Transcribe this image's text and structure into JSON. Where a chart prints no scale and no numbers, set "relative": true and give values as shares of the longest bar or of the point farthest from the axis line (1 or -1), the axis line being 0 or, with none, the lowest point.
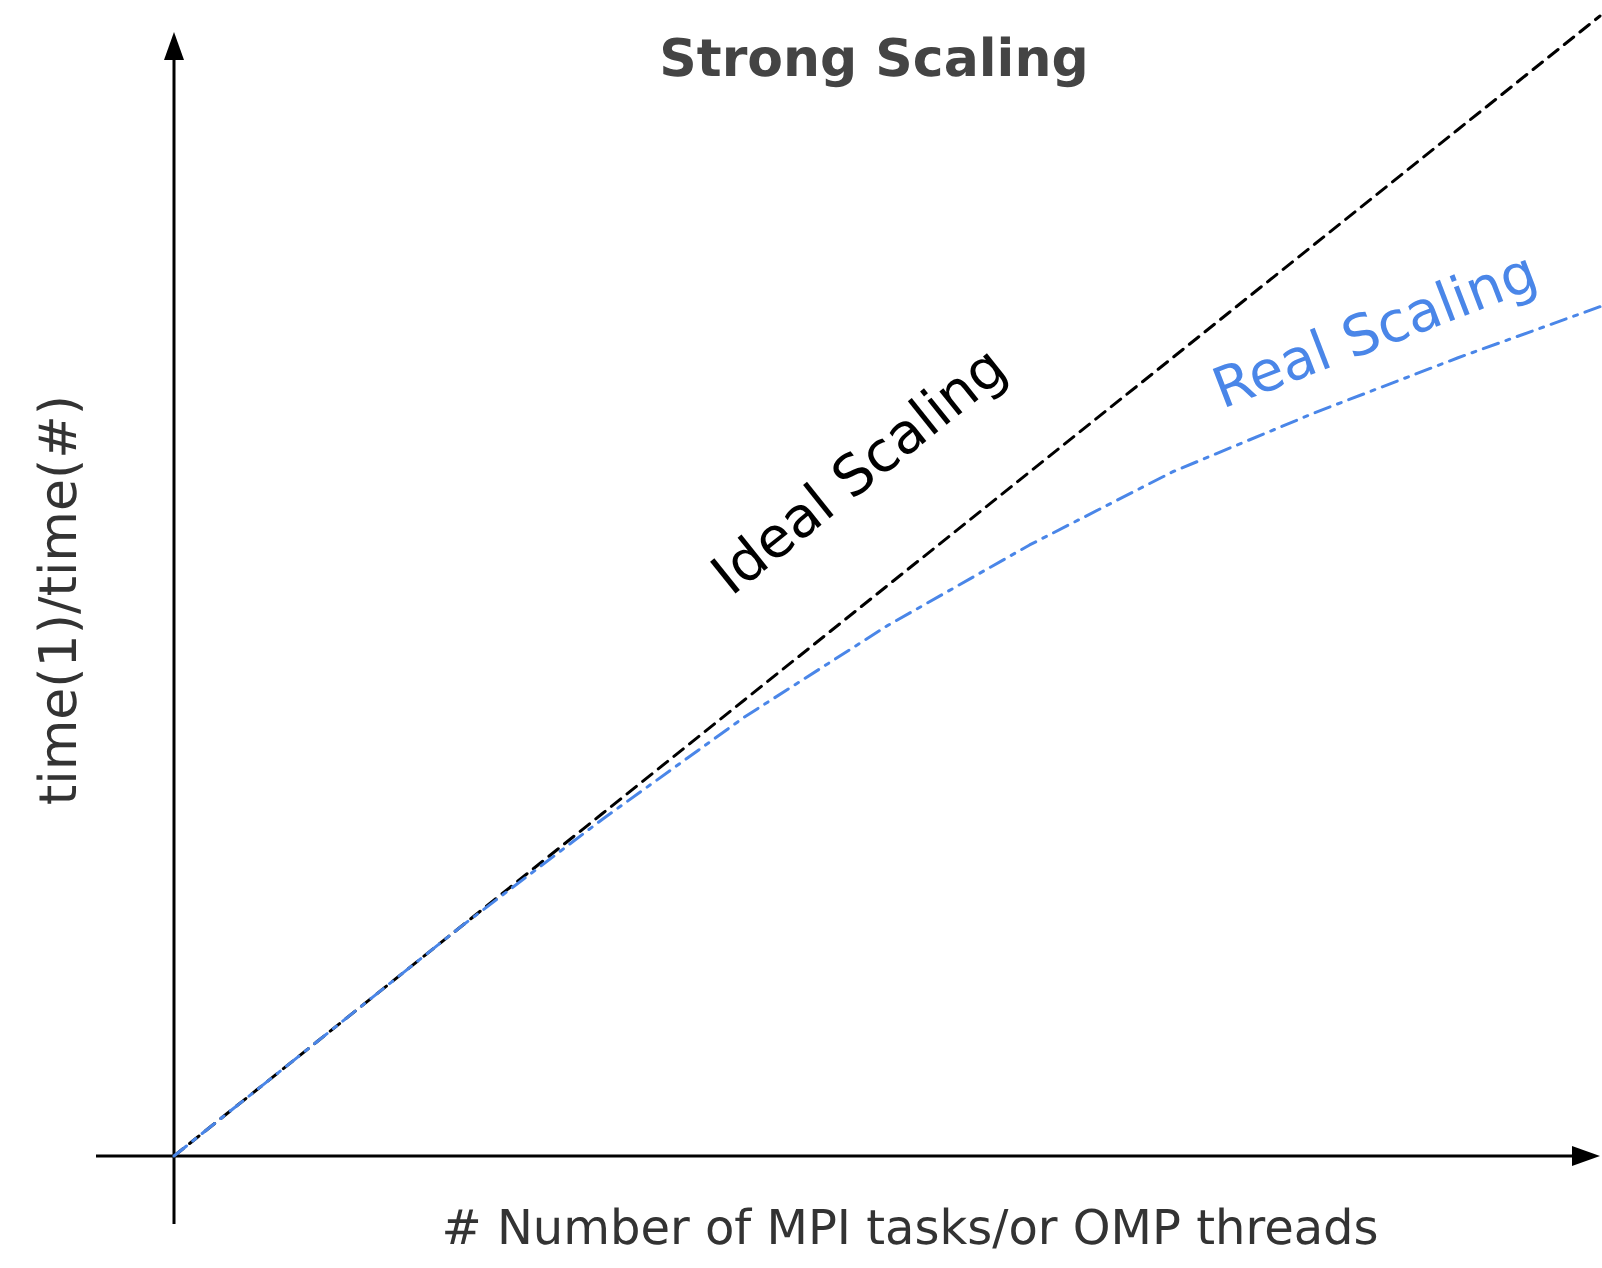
{
  "chart_data": {
    "type": "line",
    "title": "Strong Scaling",
    "xlabel": "# Number of MPI tasks/or OMP threads",
    "ylabel": "time(1)/time(#)",
    "relative": true,
    "categories": [
      null,
      null,
      null,
      null,
      null,
      null,
      null,
      null,
      null,
      null,
      null
    ],
    "marker": "none",
    "series": [
      {
        "name": "Ideal Scaling",
        "color": "#000000",
        "line_style": "dashed",
        "values": [
          0,
          0.1,
          0.2,
          0.3,
          0.4,
          0.5,
          0.6,
          0.7,
          0.8,
          0.9,
          1
        ]
      },
      {
        "name": "Real Scaling",
        "color": "#4a86e8",
        "line_style": "dashdot",
        "values": [
          0,
          0.1,
          0.2,
          0.295,
          0.385,
          0.465,
          0.536,
          0.6,
          0.652,
          0.7,
          0.745
        ]
      }
    ]
  }
}
